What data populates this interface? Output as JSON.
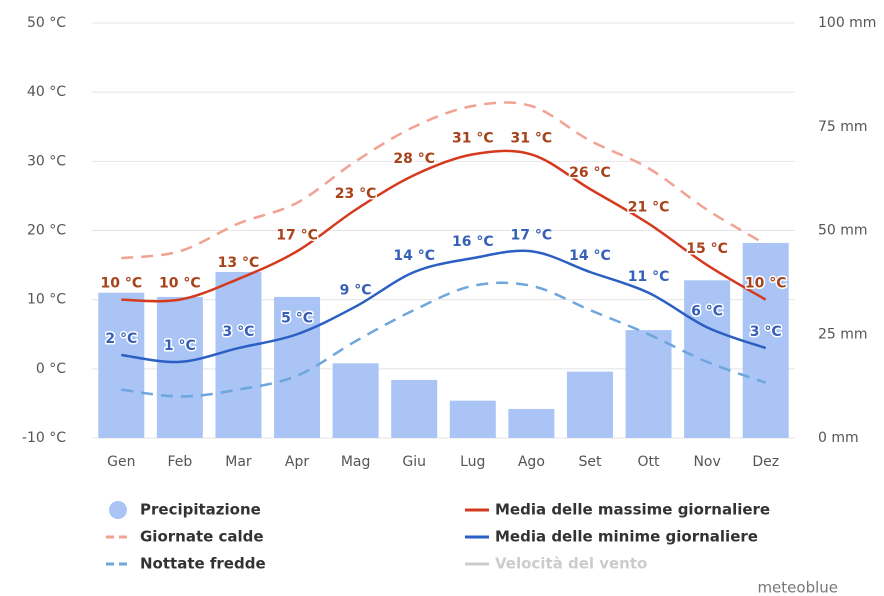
{
  "chart_data": {
    "type": "combo",
    "categories": [
      "Gen",
      "Feb",
      "Mar",
      "Apr",
      "Mag",
      "Giu",
      "Lug",
      "Ago",
      "Set",
      "Ott",
      "Nov",
      "Dez"
    ],
    "ylim": [
      -10,
      50
    ],
    "yticks": [
      {
        "value": -10,
        "label": "-10 °C"
      },
      {
        "value": 0,
        "label": "0 °C"
      },
      {
        "value": 10,
        "label": "10 °C"
      },
      {
        "value": 20,
        "label": "20 °C"
      },
      {
        "value": 30,
        "label": "30 °C"
      },
      {
        "value": 40,
        "label": "40 °C"
      },
      {
        "value": 50,
        "label": "50 °C"
      }
    ],
    "y2lim": [
      0,
      100
    ],
    "y2ticks": [
      {
        "value": 0,
        "label": "0 mm"
      },
      {
        "value": 25,
        "label": "25 mm"
      },
      {
        "value": 50,
        "label": "50 mm"
      },
      {
        "value": 75,
        "label": "75 mm"
      },
      {
        "value": 100,
        "label": "100 mm"
      }
    ],
    "grid": true,
    "series": [
      {
        "name": "Precipitazione",
        "type": "bar",
        "axis": "y2",
        "color": "#a9c4f5",
        "values": [
          35,
          34,
          40,
          34,
          18,
          14,
          9,
          7,
          16,
          26,
          38,
          47
        ]
      },
      {
        "name": "Giornate calde",
        "type": "line",
        "dash": true,
        "color": "#f2a293",
        "values": [
          16,
          17,
          21,
          24,
          30,
          35,
          38,
          38,
          33,
          29,
          23,
          18
        ]
      },
      {
        "name": "Nottate fredde",
        "type": "line",
        "dash": true,
        "color": "#6ea6dd",
        "values": [
          -3,
          -4,
          -3,
          -1,
          4,
          8.5,
          12,
          12,
          8.5,
          5,
          1,
          -2
        ]
      },
      {
        "name": "Media delle massime giornaliere",
        "type": "line",
        "color": "#d63a1e",
        "label_color": "#a8421b",
        "values": [
          10,
          10,
          13,
          17,
          23,
          28,
          31,
          31,
          26,
          21,
          15,
          10
        ],
        "value_labels": [
          "10 °C",
          "10 °C",
          "13 °C",
          "17 °C",
          "23 °C",
          "28 °C",
          "31 °C",
          "31 °C",
          "26 °C",
          "21 °C",
          "15 °C",
          "10 °C"
        ]
      },
      {
        "name": "Media delle minime giornaliere",
        "type": "line",
        "color": "#2c5fc3",
        "label_color": "#3660b8",
        "values": [
          2,
          1,
          3,
          5,
          9,
          14,
          16,
          17,
          14,
          11,
          6,
          3
        ],
        "value_labels": [
          "2 °C",
          "1 °C",
          "3 °C",
          "5 °C",
          "9 °C",
          "14 °C",
          "16 °C",
          "17 °C",
          "14 °C",
          "11 °C",
          "6 °C",
          "3 °C"
        ]
      },
      {
        "name": "Velocità del vento",
        "type": "line",
        "color": "#cccccc",
        "hidden": true
      }
    ],
    "watermark": "meteoblue"
  }
}
